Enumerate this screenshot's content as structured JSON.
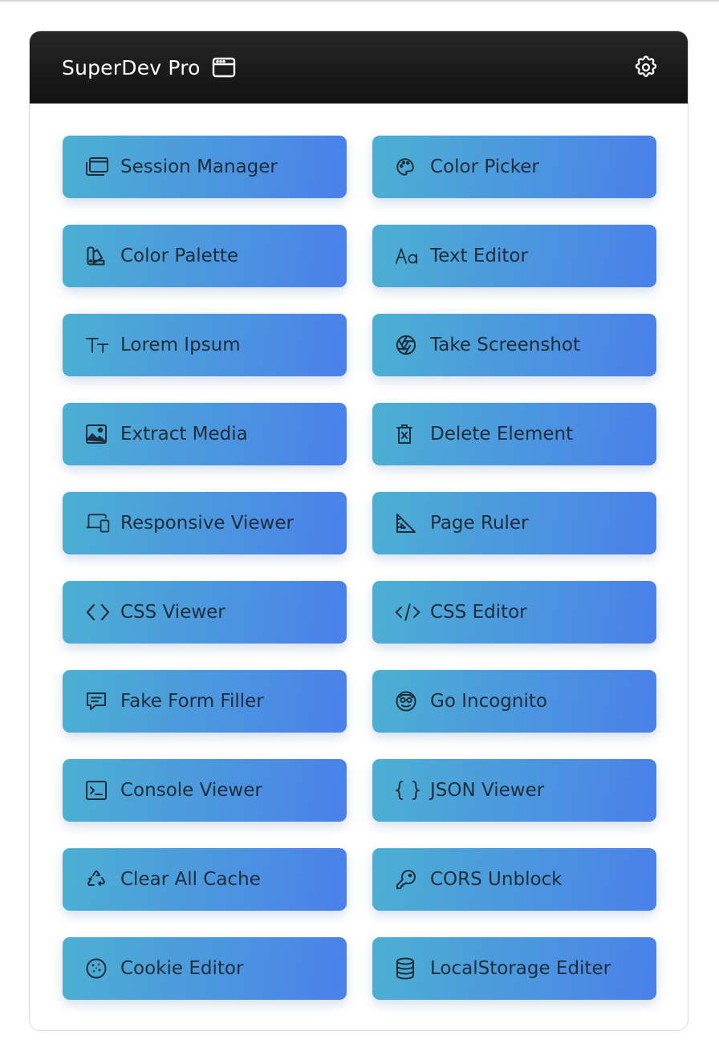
{
  "header": {
    "title": "SuperDev Pro",
    "title_icon": "browser-window-icon",
    "settings_icon": "gear-icon"
  },
  "colors": {
    "header_bg": "#1a1a1a",
    "button_gradient_start": "#4cb0d2",
    "button_gradient_end": "#4b80ea",
    "button_text": "#1f2d3a"
  },
  "tools": [
    {
      "label": "Session Manager",
      "icon": "windows-stack-icon"
    },
    {
      "label": "Color Picker",
      "icon": "palette-icon"
    },
    {
      "label": "Color Palette",
      "icon": "swatches-icon"
    },
    {
      "label": "Text Editor",
      "icon": "font-aa-icon"
    },
    {
      "label": "Lorem Ipsum",
      "icon": "text-size-icon"
    },
    {
      "label": "Take Screenshot",
      "icon": "aperture-icon"
    },
    {
      "label": "Extract Media",
      "icon": "image-icon"
    },
    {
      "label": "Delete Element",
      "icon": "trash-x-icon"
    },
    {
      "label": "Responsive Viewer",
      "icon": "devices-icon"
    },
    {
      "label": "Page Ruler",
      "icon": "set-square-icon"
    },
    {
      "label": "CSS Viewer",
      "icon": "code-brackets-icon"
    },
    {
      "label": "CSS Editor",
      "icon": "code-slash-icon"
    },
    {
      "label": "Fake Form Filler",
      "icon": "message-text-icon"
    },
    {
      "label": "Go Incognito",
      "icon": "incognito-mask-icon"
    },
    {
      "label": "Console Viewer",
      "icon": "terminal-icon"
    },
    {
      "label": "JSON Viewer",
      "icon": "curly-braces-icon"
    },
    {
      "label": "Clear All Cache",
      "icon": "recycle-icon"
    },
    {
      "label": "CORS Unblock",
      "icon": "key-icon"
    },
    {
      "label": "Cookie Editor",
      "icon": "cookie-icon"
    },
    {
      "label": "LocalStorage Editer",
      "icon": "database-icon"
    }
  ]
}
